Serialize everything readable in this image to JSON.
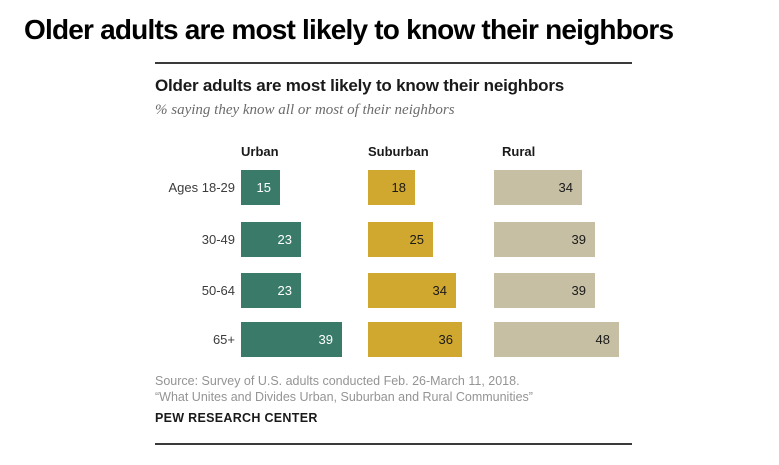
{
  "page": {
    "headline": "Older adults are most likely to know their neighbors"
  },
  "chart": {
    "title": "Older adults are most likely to know their neighbors",
    "subtitle": "% saying they know all or most of their neighbors",
    "source_line1": "Source: Survey of U.S. adults conducted Feb. 26-March 11, 2018.",
    "source_line2": "“What Unites and Divides Urban, Suburban and Rural Communities”",
    "brand": "PEW RESEARCH CENTER"
  },
  "chart_data": {
    "type": "bar",
    "orientation": "horizontal",
    "unit": "percent",
    "title": "Older adults are most likely to know their neighbors",
    "subtitle": "% saying they know all or most of their neighbors",
    "categories": [
      "Ages 18-29",
      "30-49",
      "50-64",
      "65+"
    ],
    "series": [
      {
        "name": "Urban",
        "color": "#3A7A68",
        "value_label_color": "#FFFFFF",
        "values": [
          15,
          23,
          23,
          39
        ]
      },
      {
        "name": "Suburban",
        "color": "#D0A72F",
        "value_label_color": "#1A1A1A",
        "values": [
          18,
          25,
          34,
          36
        ]
      },
      {
        "name": "Rural",
        "color": "#C6BFA3",
        "value_label_color": "#1A1A1A",
        "values": [
          34,
          39,
          39,
          48
        ]
      }
    ],
    "xlim": [
      0,
      50
    ],
    "grid": false,
    "legend_position": "column-headers",
    "value_labels": "inside-right"
  }
}
